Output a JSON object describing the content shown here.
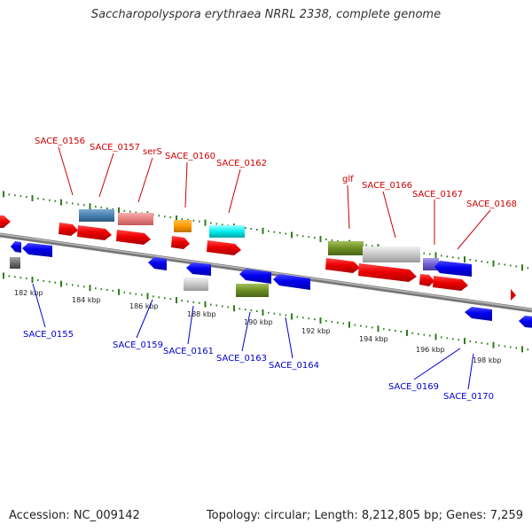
{
  "title": "Saccharopolyspora erythraea NRRL 2338, complete genome",
  "accession_text": "Accession: NC_009142",
  "meta_text": "Topology: circular; Length: 8,212,805 bp; Genes: 7,259",
  "colors": {
    "forward_label": "#cc0000",
    "reverse_label": "#0000cc",
    "backbone": "#888888",
    "tick": "#2e7d1e"
  },
  "ticks": [
    "182 kbp",
    "184 kbp",
    "186 kbp",
    "188 kbp",
    "190 kbp",
    "192 kbp",
    "194 kbp",
    "196 kbp",
    "198 kbp"
  ],
  "forward_labels": [
    "SACE_0156",
    "SACE_0157",
    "serS",
    "SACE_0160",
    "SACE_0162",
    "glf",
    "SACE_0166",
    "SACE_0167",
    "SACE_0168"
  ],
  "reverse_labels": [
    "SACE_0155",
    "SACE_0159",
    "SACE_0161",
    "SACE_0163",
    "SACE_0164",
    "SACE_0169",
    "SACE_0170"
  ]
}
